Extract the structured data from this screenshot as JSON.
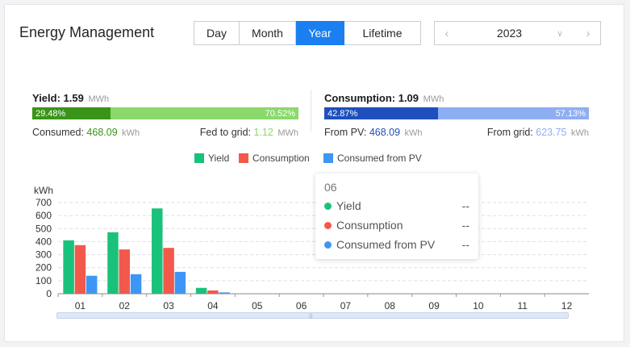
{
  "header": {
    "title": "Energy Management"
  },
  "period_tabs": [
    {
      "label": "Day",
      "active": false
    },
    {
      "label": "Month",
      "active": false
    },
    {
      "label": "Year",
      "active": true
    },
    {
      "label": "Lifetime",
      "active": false
    }
  ],
  "year_picker": {
    "value": "2023",
    "prev": "‹",
    "next": "›",
    "dropdown": "∨"
  },
  "yield": {
    "label": "Yield:",
    "value": "1.59",
    "unit": "MWh",
    "consumed_pct": 29.48,
    "consumed_pct_label": "29.48%",
    "fed_pct": 70.52,
    "fed_pct_label": "70.52%",
    "consumed_label": "Consumed:",
    "consumed_value": "468.09",
    "consumed_unit": "kWh",
    "fed_label": "Fed to grid:",
    "fed_value": "1.12",
    "fed_unit": "MWh"
  },
  "consumption": {
    "label": "Consumption:",
    "value": "1.09",
    "unit": "MWh",
    "from_pv_pct": 42.87,
    "from_pv_pct_label": "42.87%",
    "from_grid_pct": 57.13,
    "from_grid_pct_label": "57.13%",
    "from_pv_label": "From PV:",
    "from_pv_value": "468.09",
    "from_pv_unit": "kWh",
    "from_grid_label": "From grid:",
    "from_grid_value": "623.75",
    "from_grid_unit": "kWh"
  },
  "colors": {
    "accent": "#1a7ff0",
    "yield_dark": "#3a9419",
    "yield_light": "#8bd96b",
    "cons_dark": "#1f4fbd",
    "cons_light": "#8eaef2",
    "series_yield": "#19c27b",
    "series_consumption": "#f2594b",
    "series_pv": "#3d96f5"
  },
  "chart_data": {
    "type": "bar",
    "ylabel": "kWh",
    "ylim": [
      0,
      700
    ],
    "yticks": [
      "0",
      "100",
      "200",
      "300",
      "400",
      "500",
      "600",
      "700"
    ],
    "grid": true,
    "legend_position": "top",
    "categories": [
      "01",
      "02",
      "03",
      "04",
      "05",
      "06",
      "07",
      "08",
      "09",
      "10",
      "11",
      "12"
    ],
    "series": [
      {
        "name": "Yield",
        "color": "#19c27b",
        "values": [
          410,
          472,
          655,
          45,
          0,
          0,
          0,
          0,
          0,
          0,
          0,
          0
        ]
      },
      {
        "name": "Consumption",
        "color": "#f2594b",
        "values": [
          373,
          340,
          352,
          25,
          0,
          0,
          0,
          0,
          0,
          0,
          0,
          0
        ]
      },
      {
        "name": "Consumed from PV",
        "color": "#3d96f5",
        "values": [
          138,
          150,
          168,
          10,
          0,
          0,
          0,
          0,
          0,
          0,
          0,
          0
        ]
      }
    ]
  },
  "tooltip": {
    "header": "06",
    "rows": [
      {
        "label": "Yield",
        "value": "--"
      },
      {
        "label": "Consumption",
        "value": "--"
      },
      {
        "label": "Consumed from PV",
        "value": "--"
      }
    ]
  }
}
